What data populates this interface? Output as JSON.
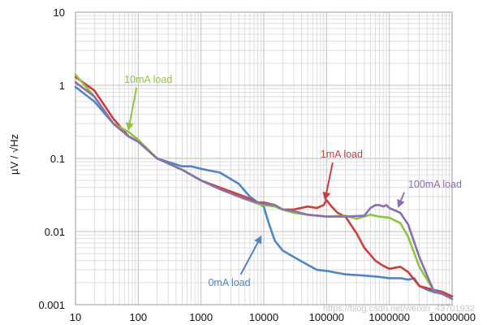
{
  "chart_data": {
    "type": "line",
    "title": "",
    "xlabel": "",
    "ylabel": "µV / √Hz",
    "xscale": "log",
    "yscale": "log",
    "xlim": [
      10,
      10000000
    ],
    "ylim": [
      0.001,
      10
    ],
    "grid": true,
    "x_ticks": [
      "10",
      "100",
      "1000",
      "10000",
      "100000",
      "1000000",
      "10000000"
    ],
    "y_ticks": [
      "0.001",
      "0.01",
      "0.1",
      "1",
      "10"
    ],
    "colors": {
      "0mA load": "#4f86c6",
      "1mA load": "#cc3d3d",
      "10mA load": "#8dc63f",
      "100mA load": "#8a6fb0"
    },
    "series": [
      {
        "name": "0mA load",
        "x": [
          10,
          20,
          40,
          70,
          100,
          200,
          500,
          700,
          1000,
          2000,
          4000,
          6000,
          8000,
          10000,
          12000,
          15000,
          20000,
          30000,
          50000,
          70000,
          100000,
          200000,
          400000,
          700000,
          1000000,
          1500000,
          2000000,
          2500000,
          3000000,
          4000000,
          5000000,
          7000000,
          10000000
        ],
        "y": [
          0.95,
          0.6,
          0.3,
          0.2,
          0.17,
          0.1,
          0.078,
          0.078,
          0.072,
          0.064,
          0.045,
          0.03,
          0.025,
          0.022,
          0.013,
          0.0075,
          0.0055,
          0.0045,
          0.0035,
          0.003,
          0.0029,
          0.0026,
          0.0025,
          0.0024,
          0.0023,
          0.0023,
          0.0022,
          0.0023,
          0.0018,
          0.0016,
          0.0015,
          0.0014,
          0.0013
        ]
      },
      {
        "name": "1mA load",
        "x": [
          10,
          20,
          40,
          70,
          100,
          200,
          500,
          1000,
          2000,
          5000,
          8000,
          10000,
          15000,
          20000,
          30000,
          50000,
          70000,
          90000,
          100000,
          120000,
          150000,
          200000,
          300000,
          400000,
          600000,
          800000,
          1000000,
          1500000,
          2000000,
          3000000,
          5000000,
          7000000,
          10000000
        ],
        "y": [
          1.3,
          0.85,
          0.35,
          0.2,
          0.17,
          0.1,
          0.07,
          0.05,
          0.04,
          0.03,
          0.025,
          0.025,
          0.023,
          0.02,
          0.02,
          0.022,
          0.021,
          0.023,
          0.027,
          0.022,
          0.018,
          0.016,
          0.0095,
          0.006,
          0.004,
          0.0034,
          0.0031,
          0.0033,
          0.0028,
          0.0018,
          0.0016,
          0.0015,
          0.0013
        ]
      },
      {
        "name": "10mA load",
        "x": [
          10,
          20,
          40,
          70,
          100,
          200,
          500,
          1000,
          2000,
          5000,
          8000,
          10000,
          15000,
          20000,
          30000,
          50000,
          100000,
          200000,
          300000,
          500000,
          700000,
          1000000,
          1500000,
          2000000,
          3000000,
          5000000,
          7000000,
          10000000
        ],
        "y": [
          1.4,
          0.7,
          0.3,
          0.23,
          0.18,
          0.1,
          0.07,
          0.05,
          0.038,
          0.028,
          0.024,
          0.023,
          0.022,
          0.02,
          0.018,
          0.017,
          0.016,
          0.0165,
          0.015,
          0.017,
          0.016,
          0.0155,
          0.013,
          0.0085,
          0.0033,
          0.0016,
          0.0014,
          0.0012
        ]
      },
      {
        "name": "100mA load",
        "x": [
          10,
          20,
          40,
          70,
          100,
          200,
          500,
          1000,
          2000,
          5000,
          8000,
          10000,
          15000,
          20000,
          30000,
          50000,
          100000,
          200000,
          400000,
          500000,
          600000,
          700000,
          800000,
          900000,
          1000000,
          1500000,
          2000000,
          3000000,
          5000000,
          7000000,
          10000000
        ],
        "y": [
          1.1,
          0.7,
          0.3,
          0.2,
          0.17,
          0.1,
          0.07,
          0.05,
          0.038,
          0.028,
          0.025,
          0.024,
          0.023,
          0.02,
          0.019,
          0.017,
          0.016,
          0.016,
          0.0165,
          0.021,
          0.023,
          0.023,
          0.022,
          0.023,
          0.021,
          0.018,
          0.0125,
          0.0045,
          0.0016,
          0.0014,
          0.0012
        ]
      }
    ],
    "annotations": [
      {
        "text": "10mA load",
        "color": "#8dc63f",
        "label_x": 60,
        "label_y": 1.08,
        "arrow_to_x": 70,
        "arrow_to_y": 0.25
      },
      {
        "text": "1mA load",
        "color": "#cc3d3d",
        "label_x": 80000,
        "label_y": 0.102,
        "arrow_to_x": 95000,
        "arrow_to_y": 0.028
      },
      {
        "text": "100mA load",
        "color": "#8a6fb0",
        "label_x": 2000000,
        "label_y": 0.04,
        "arrow_to_x": 1400000,
        "arrow_to_y": 0.022
      },
      {
        "text": "0mA load",
        "color": "#4f86c6",
        "label_x": 1300,
        "label_y": 0.0018,
        "arrow_to_x": 9000,
        "arrow_to_y": 0.0085
      }
    ],
    "watermark": "https://blog.csdn.net/weixin_43701932"
  }
}
